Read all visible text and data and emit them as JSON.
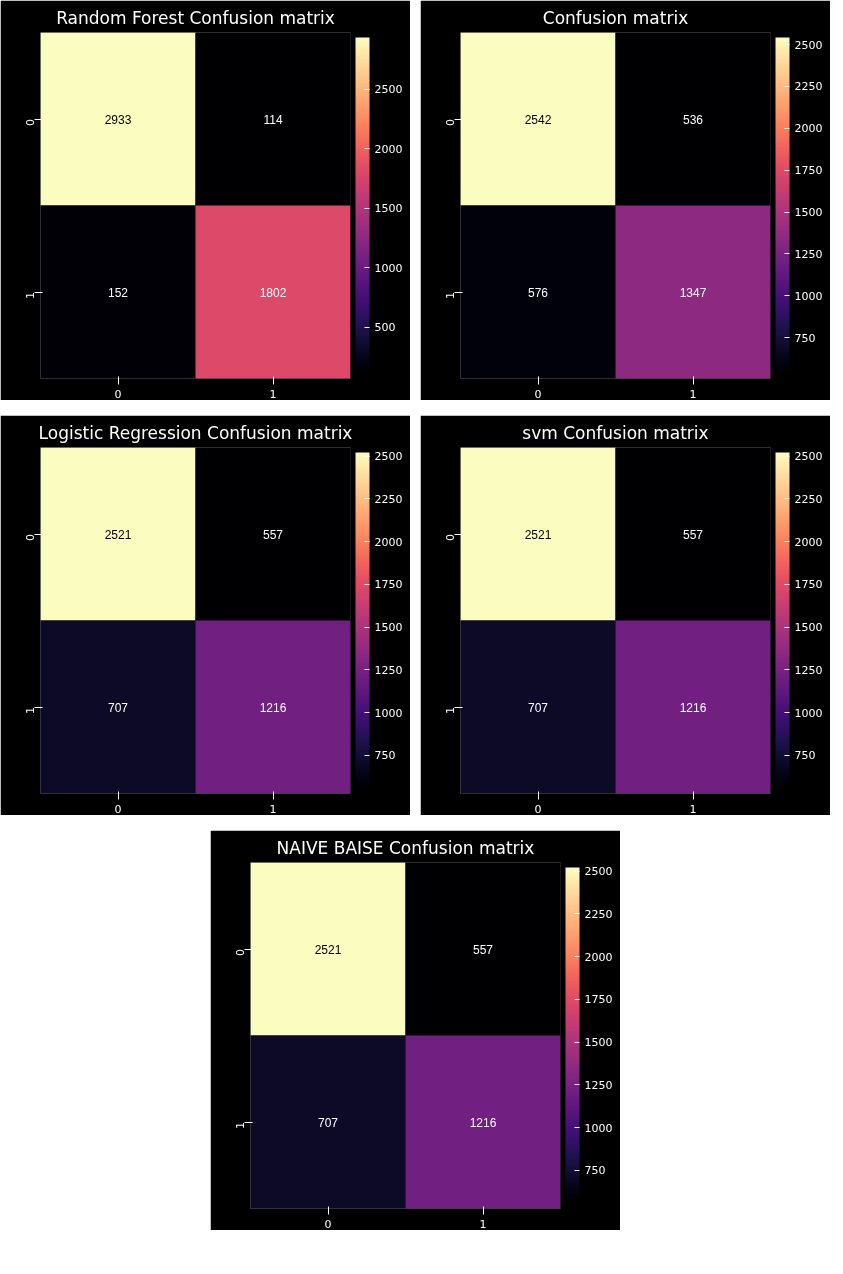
{
  "chart_data": [
    {
      "type": "heatmap",
      "title": "Random Forest Confusion matrix",
      "categories": [
        "0",
        "1"
      ],
      "y_categories": [
        "0",
        "1"
      ],
      "cells": [
        [
          2933,
          114
        ],
        [
          152,
          1802
        ]
      ],
      "clim": [
        114,
        2933
      ],
      "cticks": [
        500,
        1000,
        1500,
        2000,
        2500
      ],
      "data_labels": true
    },
    {
      "type": "heatmap",
      "title": "Confusion matrix",
      "categories": [
        "0",
        "1"
      ],
      "y_categories": [
        "0",
        "1"
      ],
      "cells": [
        [
          2542,
          536
        ],
        [
          576,
          1347
        ]
      ],
      "clim": [
        536,
        2542
      ],
      "cticks": [
        750,
        1000,
        1250,
        1500,
        1750,
        2000,
        2250,
        2500
      ],
      "data_labels": true
    },
    {
      "type": "heatmap",
      "title": "Logistic Regression Confusion matrix",
      "categories": [
        "0",
        "1"
      ],
      "y_categories": [
        "0",
        "1"
      ],
      "cells": [
        [
          2521,
          557
        ],
        [
          707,
          1216
        ]
      ],
      "clim": [
        557,
        2521
      ],
      "cticks": [
        750,
        1000,
        1250,
        1500,
        1750,
        2000,
        2250,
        2500
      ],
      "data_labels": true
    },
    {
      "type": "heatmap",
      "title": "svm Confusion matrix",
      "categories": [
        "0",
        "1"
      ],
      "y_categories": [
        "0",
        "1"
      ],
      "cells": [
        [
          2521,
          557
        ],
        [
          707,
          1216
        ]
      ],
      "clim": [
        557,
        2521
      ],
      "cticks": [
        750,
        1000,
        1250,
        1500,
        1750,
        2000,
        2250,
        2500
      ],
      "data_labels": true
    },
    {
      "type": "heatmap",
      "title": "NAIVE BAISE Confusion matrix",
      "categories": [
        "0",
        "1"
      ],
      "y_categories": [
        "0",
        "1"
      ],
      "cells": [
        [
          2521,
          557
        ],
        [
          707,
          1216
        ]
      ],
      "clim": [
        557,
        2521
      ],
      "cticks": [
        750,
        1000,
        1250,
        1500,
        1750,
        2000,
        2250,
        2500
      ],
      "data_labels": true
    }
  ]
}
